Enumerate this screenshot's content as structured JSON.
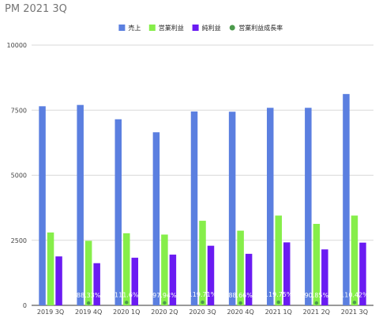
{
  "title": "PM 2021 3Q",
  "chart_data": {
    "type": "bar",
    "title": "PM 2021 3Q",
    "categories": [
      "2019 3Q",
      "2019 4Q",
      "2020 1Q",
      "2020 2Q",
      "2020 3Q",
      "2020 4Q",
      "2021 1Q",
      "2021 2Q",
      "2021 3Q"
    ],
    "series": [
      {
        "name": "売上",
        "color": "#5b7fe0",
        "values": [
          7650,
          7700,
          7150,
          6650,
          7450,
          7440,
          7590,
          7590,
          8120
        ]
      },
      {
        "name": "営業利益",
        "color": "#86ee4a",
        "values": [
          2800,
          2480,
          2770,
          2720,
          3250,
          2870,
          3450,
          3130,
          3450
        ]
      },
      {
        "name": "純利益",
        "color": "#6a1bf2",
        "values": [
          1880,
          1620,
          1830,
          1950,
          2290,
          1980,
          2420,
          2150,
          2410
        ]
      },
      {
        "name": "営業利益成長率",
        "color": "#4c9a4c",
        "type": "scatter",
        "values": [
          null,
          88.33,
          111.6,
          97.94,
          119.71,
          88.66,
          119.75,
          90.85,
          110.42
        ],
        "labels": [
          "",
          "88.33%",
          "111.6%",
          "97.94%",
          "119.71%",
          "88.66%",
          "119.75%",
          "90.85%",
          "110.42%"
        ]
      }
    ],
    "ylim": [
      0,
      10000
    ],
    "yticks": [
      0,
      2500,
      5000,
      7500,
      10000
    ],
    "grid": true,
    "legend": "top"
  }
}
